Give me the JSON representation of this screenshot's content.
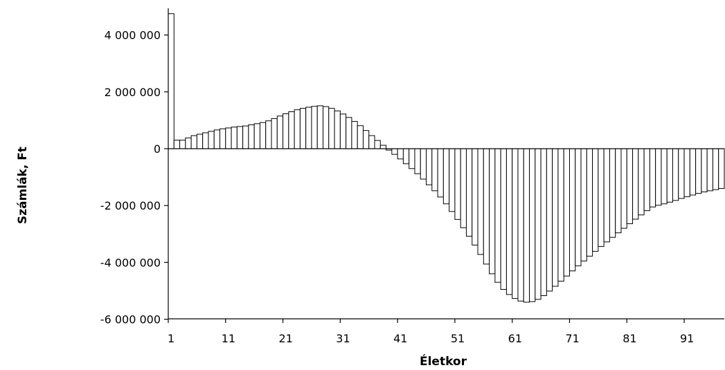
{
  "chart_data": {
    "type": "bar",
    "xlabel": "Életkor",
    "ylabel": "Számlák, Ft",
    "ylim": [
      -6000000,
      5000000
    ],
    "y_ticks": [
      4000000,
      2000000,
      0,
      -2000000,
      -4000000,
      -6000000
    ],
    "y_tick_labels": [
      "4 000 000",
      "2 000 000",
      "0",
      "-2 000 000",
      "-4 000 000",
      "-6 000 000"
    ],
    "x_ticks": [
      1,
      11,
      21,
      31,
      41,
      51,
      61,
      71,
      81,
      91
    ],
    "x_tick_labels": [
      "1",
      "11",
      "21",
      "31",
      "41",
      "51",
      "61",
      "71",
      "81",
      "91"
    ],
    "x_range": [
      1,
      97
    ],
    "grid": false,
    "legend": "none",
    "bar_fill": "#ffffff",
    "bar_stroke": "#000000",
    "categories": [
      1,
      2,
      3,
      4,
      5,
      6,
      7,
      8,
      9,
      10,
      11,
      12,
      13,
      14,
      15,
      16,
      17,
      18,
      19,
      20,
      21,
      22,
      23,
      24,
      25,
      26,
      27,
      28,
      29,
      30,
      31,
      32,
      33,
      34,
      35,
      36,
      37,
      38,
      39,
      40,
      41,
      42,
      43,
      44,
      45,
      46,
      47,
      48,
      49,
      50,
      51,
      52,
      53,
      54,
      55,
      56,
      57,
      58,
      59,
      60,
      61,
      62,
      63,
      64,
      65,
      66,
      67,
      68,
      69,
      70,
      71,
      72,
      73,
      74,
      75,
      76,
      77,
      78,
      79,
      80,
      81,
      82,
      83,
      84,
      85,
      86,
      87,
      88,
      89,
      90,
      91,
      92,
      93,
      94,
      95,
      96,
      97
    ],
    "values": [
      4750000,
      300000,
      300000,
      380000,
      460000,
      510000,
      560000,
      610000,
      660000,
      700000,
      730000,
      760000,
      780000,
      800000,
      840000,
      880000,
      920000,
      980000,
      1060000,
      1150000,
      1230000,
      1300000,
      1370000,
      1420000,
      1460000,
      1490000,
      1510000,
      1480000,
      1420000,
      1330000,
      1220000,
      1100000,
      960000,
      810000,
      640000,
      460000,
      290000,
      120000,
      -50000,
      -200000,
      -360000,
      -530000,
      -700000,
      -880000,
      -1070000,
      -1270000,
      -1480000,
      -1700000,
      -1940000,
      -2210000,
      -2490000,
      -2780000,
      -3080000,
      -3390000,
      -3720000,
      -4060000,
      -4400000,
      -4700000,
      -4950000,
      -5130000,
      -5270000,
      -5360000,
      -5400000,
      -5380000,
      -5300000,
      -5170000,
      -5010000,
      -4840000,
      -4660000,
      -4480000,
      -4300000,
      -4120000,
      -3950000,
      -3780000,
      -3610000,
      -3440000,
      -3280000,
      -3120000,
      -2960000,
      -2800000,
      -2640000,
      -2480000,
      -2330000,
      -2180000,
      -2050000,
      -1990000,
      -1940000,
      -1880000,
      -1820000,
      -1750000,
      -1690000,
      -1630000,
      -1570000,
      -1520000,
      -1480000,
      -1440000,
      -1400000
    ]
  }
}
